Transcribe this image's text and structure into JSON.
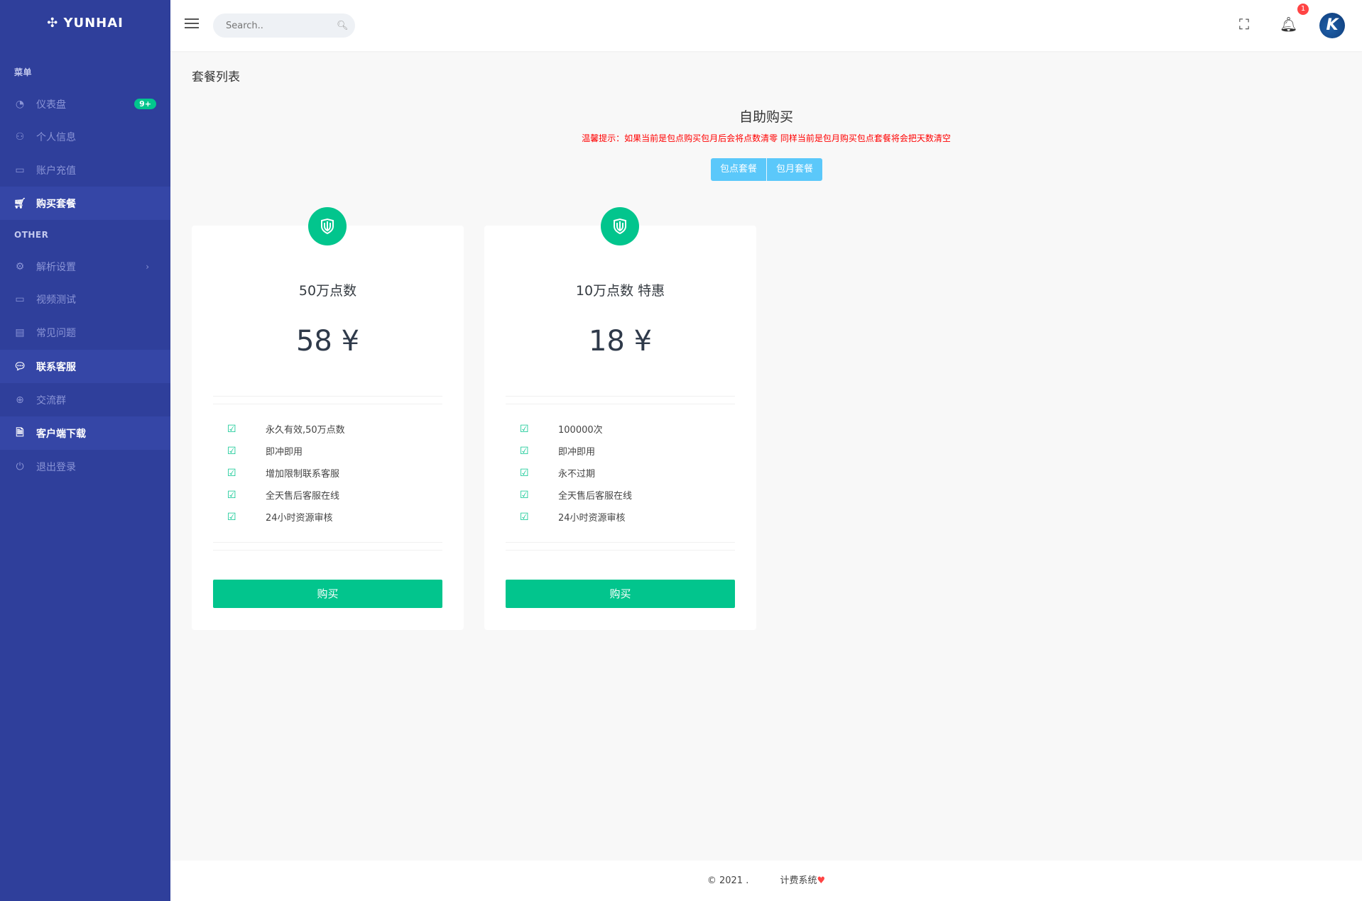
{
  "brand": {
    "name": "YUNHAI"
  },
  "sidebar": {
    "section_menu": "菜单",
    "section_other": "OTHER",
    "items": [
      {
        "label": "仪表盘",
        "icon": "dashboard-icon",
        "badge": "9+"
      },
      {
        "label": "个人信息",
        "icon": "user-icon"
      },
      {
        "label": "账户充值",
        "icon": "credit-card-icon"
      },
      {
        "label": "购买套餐",
        "icon": "cart-icon",
        "active": true
      },
      {
        "label": "解析设置",
        "icon": "gear-icon"
      },
      {
        "label": "视频测试",
        "icon": "video-icon"
      },
      {
        "label": "常见问题",
        "icon": "document-icon"
      },
      {
        "label": "联系客服",
        "icon": "chat-icon",
        "active": true
      },
      {
        "label": "交流群",
        "icon": "plus-circle-icon"
      },
      {
        "label": "客户端下载",
        "icon": "file-download-icon",
        "active": true
      },
      {
        "label": "退出登录",
        "icon": "power-icon"
      }
    ]
  },
  "header": {
    "search_placeholder": "Search..",
    "notification_count": "1"
  },
  "page": {
    "title": "套餐列表",
    "heading": "自助购买",
    "warning": "温馨提示：如果当前是包点购买包月后会将点数清零 同样当前是包月购买包点套餐将会把天数清空",
    "tabs": [
      "包点套餐",
      "包月套餐"
    ]
  },
  "plans": [
    {
      "title": "50万点数",
      "price": "58 ¥",
      "features": [
        "永久有效,50万点数",
        "即冲即用",
        "增加限制联系客服",
        "全天售后客服在线",
        "24小时资源审核"
      ],
      "buy": "购买"
    },
    {
      "title": "10万点数 特惠",
      "price": "18 ¥",
      "features": [
        "100000次",
        "即冲即用",
        "永不过期",
        "全天售后客服在线",
        "24小时资源审核"
      ],
      "buy": "购买"
    }
  ],
  "footer": {
    "copyright": "© 2021 .",
    "system": "计费系统",
    "heart": "♥"
  },
  "colors": {
    "sidebar": "#2f3f9b",
    "accent": "#02c58d",
    "tab": "#5bc8fa",
    "warning": "#ff0000"
  }
}
